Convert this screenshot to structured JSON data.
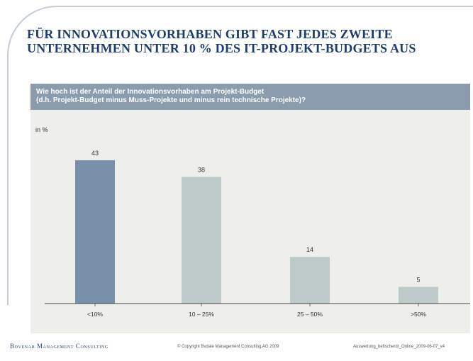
{
  "slide": {
    "title_line1": "FÜR INNOVATIONSVORHABEN GIBT FAST JEDES ZWEITE",
    "title_line2": "UNTERNEHMEN UNTER 10 % DES IT-PROJEKT-BUDGETS AUS",
    "question_line1": "Wie hoch ist der Anteil der Innovationsvorhaben am Projekt-Budget",
    "question_line2": "(d.h. Projekt-Budget minus Muss-Projekte und minus rein technische Projekte)?",
    "unit": "in %"
  },
  "footer": {
    "logo": "Bovenar Management Consulting",
    "copyright": "© Copyright Bvdale Management Consulting AG 2009",
    "source": "Auswertung_befischerdr_Online_2009-06-07_v4"
  },
  "colors": {
    "highlight_bar": "#7890aa",
    "bar": "#bdcac9",
    "header_band": "#8a9cae",
    "panel": "#eeeeea",
    "title": "#1f3c6e"
  },
  "chart_data": {
    "type": "bar",
    "categories": [
      "<10%",
      "10 – 25%",
      "25 – 50%",
      ">50%"
    ],
    "values": [
      43,
      38,
      14,
      5
    ],
    "ylabel": "in %",
    "ylim": [
      0,
      50
    ],
    "grid": false
  }
}
